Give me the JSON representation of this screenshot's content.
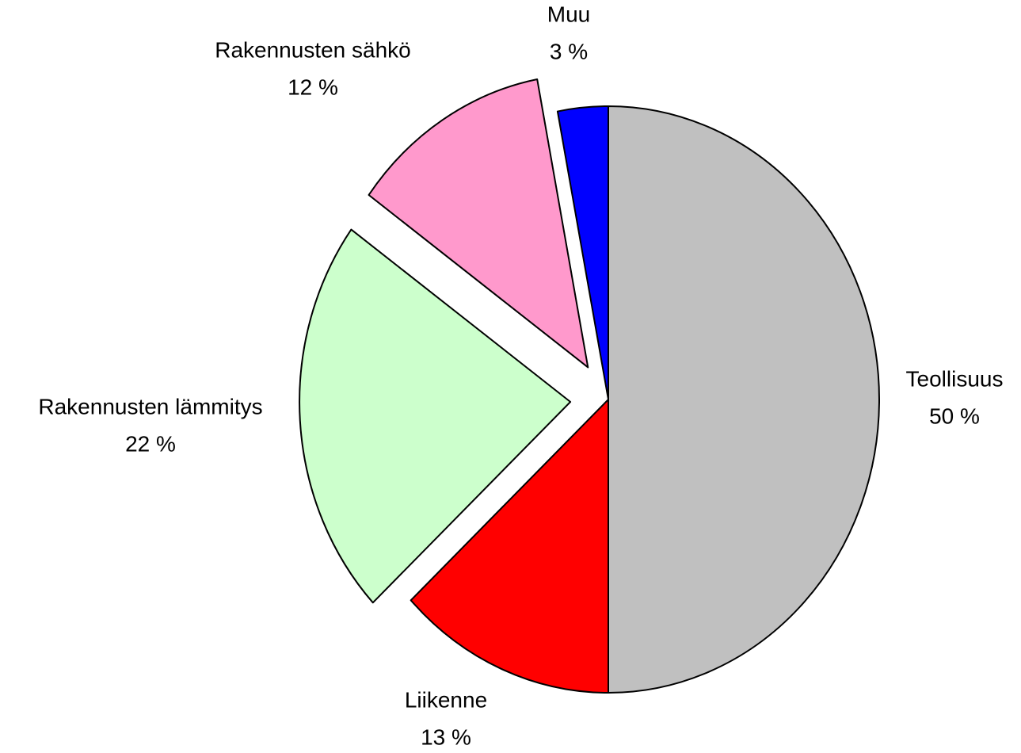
{
  "chart_data": {
    "type": "pie",
    "categories": [
      "Teollisuus",
      "Liikenne",
      "Rakennusten lämmitys",
      "Rakennusten sähkö",
      "Muu"
    ],
    "values": [
      50,
      13,
      22,
      12,
      3
    ],
    "value_labels": [
      "50 %",
      "13 %",
      "22 %",
      "12 %",
      "3 %"
    ],
    "colors": [
      "#c0c0c0",
      "#ff0000",
      "#ccffcc",
      "#ff99cc",
      "#0000ff"
    ],
    "exploded": [
      false,
      false,
      true,
      true,
      false
    ]
  }
}
